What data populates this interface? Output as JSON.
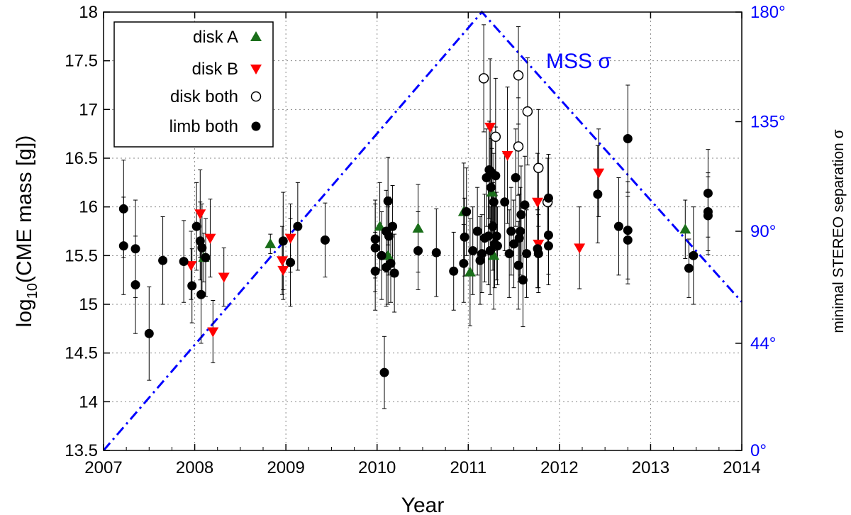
{
  "chart_data": {
    "type": "scatter",
    "xlabel": "Year",
    "ylabel": "log10(CME mass [g])",
    "ylabel_base": "log",
    "ylabel_sub": "10",
    "ylabel_rest": "(CME mass [g])",
    "y2label": "minimal STEREO separation σ",
    "xlim": [
      2007,
      2014
    ],
    "ylim": [
      13.5,
      18
    ],
    "y2lim": [
      0,
      180
    ],
    "x_ticks": [
      "2007",
      "2008",
      "2009",
      "2010",
      "2011",
      "2012",
      "2013",
      "2014"
    ],
    "y_ticks": [
      "13.5",
      "14",
      "14.5",
      "15",
      "15.5",
      "16",
      "16.5",
      "17",
      "17.5",
      "18"
    ],
    "y2_ticks": [
      {
        "value": 0,
        "label": "0°"
      },
      {
        "value": 44,
        "label": "44°"
      },
      {
        "value": 90,
        "label": "90°"
      },
      {
        "value": 135,
        "label": "135°"
      },
      {
        "value": 180,
        "label": "180°"
      }
    ],
    "grid": true,
    "legend_position": "top-left",
    "annotation": "MSS σ",
    "colors": {
      "diskA": "#1a6e1a",
      "diskB": "#ff0000",
      "line": "#0000ff"
    },
    "series": [
      {
        "name": "disk A",
        "marker": "triangle-up",
        "points": [
          [
            2008.1,
            15.48,
            0.25
          ],
          [
            2008.83,
            15.62,
            0.1
          ],
          [
            2010.03,
            15.8,
            0.45
          ],
          [
            2010.12,
            15.5,
            0.5
          ],
          [
            2010.45,
            15.78,
            0.45
          ],
          [
            2010.95,
            15.95,
            0.5
          ],
          [
            2011.02,
            15.33,
            0.55
          ],
          [
            2011.26,
            16.15,
            0.45
          ],
          [
            2011.28,
            15.5,
            0.55
          ],
          [
            2013.38,
            15.77,
            0.3
          ]
        ]
      },
      {
        "name": "disk B",
        "marker": "triangle-down",
        "points": [
          [
            2007.96,
            15.4,
            0.35
          ],
          [
            2008.06,
            15.93,
            0.45
          ],
          [
            2008.17,
            15.68,
            0.4
          ],
          [
            2008.2,
            14.72,
            0.32
          ],
          [
            2008.32,
            15.28,
            0.3
          ],
          [
            2008.96,
            15.45,
            0.35
          ],
          [
            2008.97,
            15.35,
            0.3
          ],
          [
            2009.05,
            15.68,
            0.35
          ],
          [
            2011.24,
            16.82,
            0.7
          ],
          [
            2011.43,
            16.53,
            0.7
          ],
          [
            2011.76,
            16.05,
            0.5
          ],
          [
            2011.77,
            15.62,
            0.45
          ],
          [
            2012.22,
            15.58,
            0.42
          ],
          [
            2012.43,
            16.35,
            0.45
          ]
        ]
      },
      {
        "name": "disk both",
        "marker": "circle-open",
        "points": [
          [
            2011.17,
            17.32,
            0.55
          ],
          [
            2011.3,
            16.72,
            0.6
          ],
          [
            2011.55,
            17.35,
            0.5
          ],
          [
            2011.55,
            16.62,
            0.5
          ],
          [
            2011.65,
            16.98,
            0.55
          ],
          [
            2011.77,
            16.4,
            0.6
          ],
          [
            2011.87,
            16.05,
            0.45
          ]
        ]
      },
      {
        "name": "limb both",
        "marker": "circle-filled",
        "points": [
          [
            2007.22,
            15.98,
            0.5
          ],
          [
            2007.22,
            15.6,
            0.5
          ],
          [
            2007.35,
            15.57,
            0.5
          ],
          [
            2007.35,
            15.2,
            0.5
          ],
          [
            2007.5,
            14.7,
            0.48
          ],
          [
            2007.65,
            15.45,
            0.45
          ],
          [
            2007.88,
            15.44,
            0.42
          ],
          [
            2007.97,
            15.19,
            0.38
          ],
          [
            2008.02,
            15.8,
            0.45
          ],
          [
            2008.06,
            15.65,
            0.4
          ],
          [
            2008.08,
            15.58,
            0.45
          ],
          [
            2008.07,
            15.1,
            0.5
          ],
          [
            2008.12,
            15.48,
            0.4
          ],
          [
            2008.97,
            15.65,
            0.5
          ],
          [
            2009.05,
            15.43,
            0.45
          ],
          [
            2009.13,
            15.8,
            0.45
          ],
          [
            2009.43,
            15.66,
            0.38
          ],
          [
            2009.98,
            15.67,
            0.4
          ],
          [
            2009.98,
            15.58,
            0.45
          ],
          [
            2009.98,
            15.34,
            0.4
          ],
          [
            2010.05,
            15.5,
            0.45
          ],
          [
            2010.1,
            15.75,
            0.42
          ],
          [
            2010.1,
            15.38,
            0.4
          ],
          [
            2010.12,
            16.06,
            0.45
          ],
          [
            2010.13,
            15.7,
            0.4
          ],
          [
            2010.15,
            15.42,
            0.4
          ],
          [
            2010.17,
            15.8,
            0.42
          ],
          [
            2010.19,
            15.32,
            0.4
          ],
          [
            2010.08,
            14.3,
            0.37
          ],
          [
            2010.45,
            15.55,
            0.4
          ],
          [
            2010.65,
            15.53,
            0.45
          ],
          [
            2010.84,
            15.34,
            0.4
          ],
          [
            2010.95,
            15.42,
            0.4
          ],
          [
            2010.96,
            15.69,
            0.4
          ],
          [
            2010.98,
            15.95,
            0.45
          ],
          [
            2011.05,
            15.55,
            0.45
          ],
          [
            2011.1,
            15.75,
            0.45
          ],
          [
            2011.13,
            15.45,
            0.45
          ],
          [
            2011.15,
            15.52,
            0.4
          ],
          [
            2011.18,
            15.68,
            0.45
          ],
          [
            2011.2,
            16.3,
            0.5
          ],
          [
            2011.22,
            15.7,
            0.5
          ],
          [
            2011.23,
            16.38,
            0.5
          ],
          [
            2011.24,
            15.55,
            0.45
          ],
          [
            2011.25,
            16.2,
            0.5
          ],
          [
            2011.26,
            16.35,
            0.5
          ],
          [
            2011.27,
            15.8,
            0.45
          ],
          [
            2011.28,
            16.05,
            0.5
          ],
          [
            2011.29,
            15.62,
            0.45
          ],
          [
            2011.3,
            16.32,
            0.5
          ],
          [
            2011.31,
            15.7,
            0.45
          ],
          [
            2011.32,
            15.6,
            0.4
          ],
          [
            2011.4,
            16.05,
            0.5
          ],
          [
            2011.45,
            15.52,
            0.45
          ],
          [
            2011.47,
            15.75,
            0.45
          ],
          [
            2011.5,
            15.62,
            0.45
          ],
          [
            2011.52,
            16.3,
            0.5
          ],
          [
            2011.55,
            15.4,
            0.45
          ],
          [
            2011.56,
            15.68,
            0.45
          ],
          [
            2011.57,
            15.75,
            0.45
          ],
          [
            2011.58,
            15.92,
            0.5
          ],
          [
            2011.6,
            15.25,
            0.48
          ],
          [
            2011.62,
            16.02,
            0.5
          ],
          [
            2011.64,
            15.52,
            0.45
          ],
          [
            2011.76,
            15.57,
            0.4
          ],
          [
            2011.77,
            15.52,
            0.4
          ],
          [
            2011.88,
            16.09,
            0.45
          ],
          [
            2011.88,
            15.71,
            0.4
          ],
          [
            2011.88,
            15.6,
            0.4
          ],
          [
            2012.42,
            16.13,
            0.5
          ],
          [
            2012.65,
            15.8,
            0.5
          ],
          [
            2012.75,
            16.7,
            0.55
          ],
          [
            2012.75,
            15.76,
            0.5
          ],
          [
            2012.75,
            15.66,
            0.45
          ],
          [
            2013.42,
            15.37,
            0.3
          ],
          [
            2013.47,
            15.5,
            0.5
          ],
          [
            2013.63,
            16.14,
            0.45
          ],
          [
            2013.63,
            15.95,
            0.4
          ],
          [
            2013.63,
            15.91,
            0.4
          ]
        ]
      }
    ],
    "mss_line": [
      [
        2007,
        0
      ],
      [
        2011.15,
        180
      ],
      [
        2014,
        61
      ]
    ]
  }
}
